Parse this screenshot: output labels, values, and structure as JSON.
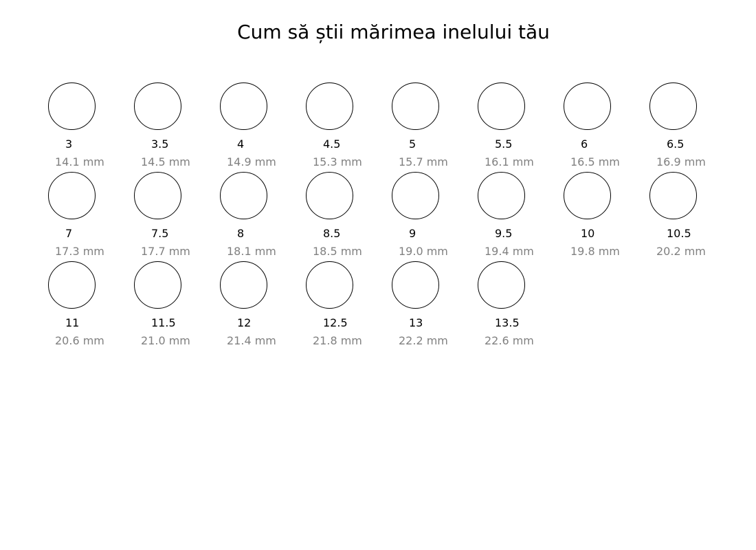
{
  "title": "Cum să știi mărimea inelului tău",
  "colors": {
    "ring_stroke": "#000000",
    "size_text": "#000000",
    "mm_text": "#808080"
  },
  "rings": [
    {
      "size": "3",
      "diameter": "14.1 mm"
    },
    {
      "size": "3.5",
      "diameter": "14.5 mm"
    },
    {
      "size": "4",
      "diameter": "14.9 mm"
    },
    {
      "size": "4.5",
      "diameter": "15.3 mm"
    },
    {
      "size": "5",
      "diameter": "15.7 mm"
    },
    {
      "size": "5.5",
      "diameter": "16.1 mm"
    },
    {
      "size": "6",
      "diameter": "16.5 mm"
    },
    {
      "size": "6.5",
      "diameter": "16.9 mm"
    },
    {
      "size": "7",
      "diameter": "17.3 mm"
    },
    {
      "size": "7.5",
      "diameter": "17.7 mm"
    },
    {
      "size": "8",
      "diameter": "18.1 mm"
    },
    {
      "size": "8.5",
      "diameter": "18.5 mm"
    },
    {
      "size": "9",
      "diameter": "19.0 mm"
    },
    {
      "size": "9.5",
      "diameter": "19.4 mm"
    },
    {
      "size": "10",
      "diameter": "19.8 mm"
    },
    {
      "size": "10.5",
      "diameter": "20.2 mm"
    },
    {
      "size": "11",
      "diameter": "20.6 mm"
    },
    {
      "size": "11.5",
      "diameter": "21.0 mm"
    },
    {
      "size": "12",
      "diameter": "21.4 mm"
    },
    {
      "size": "12.5",
      "diameter": "21.8 mm"
    },
    {
      "size": "13",
      "diameter": "22.2 mm"
    },
    {
      "size": "13.5",
      "diameter": "22.6 mm"
    }
  ]
}
